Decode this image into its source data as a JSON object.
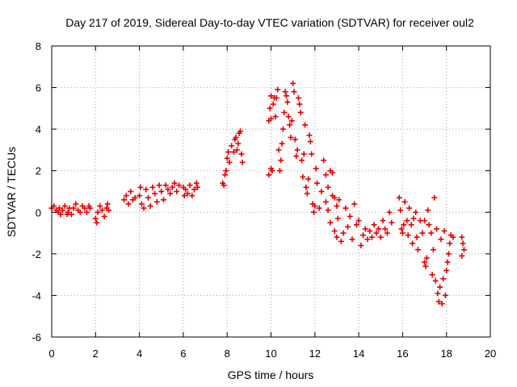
{
  "chart_data": {
    "type": "scatter",
    "title": "Day 217 of 2019, Sidereal Day-to-day VTEC variation (SDTVAR) for receiver oul2",
    "xlabel": "GPS time / hours",
    "ylabel": "SDTVAR / TECUs",
    "xlim": [
      0,
      20
    ],
    "ylim": [
      -6,
      8
    ],
    "xticks": [
      0,
      2,
      4,
      6,
      8,
      10,
      12,
      14,
      16,
      18,
      20
    ],
    "yticks": [
      -6,
      -4,
      -2,
      0,
      2,
      4,
      6,
      8
    ],
    "grid": true,
    "marker": "+",
    "colors": {
      "series": "#e60000",
      "grid": "#a0a0a0",
      "axis": "#000000"
    },
    "series": [
      {
        "name": "SDTVAR",
        "points": [
          [
            0.0,
            0.2
          ],
          [
            0.1,
            0.3
          ],
          [
            0.2,
            0.1
          ],
          [
            0.3,
            0.0
          ],
          [
            0.35,
            0.2
          ],
          [
            0.4,
            -0.1
          ],
          [
            0.5,
            0.1
          ],
          [
            0.6,
            0.3
          ],
          [
            0.7,
            -0.1
          ],
          [
            0.75,
            0.0
          ],
          [
            0.8,
            0.2
          ],
          [
            0.9,
            -0.1
          ],
          [
            1.0,
            0.2
          ],
          [
            1.1,
            0.4
          ],
          [
            1.2,
            0.1
          ],
          [
            1.3,
            0.0
          ],
          [
            1.4,
            0.3
          ],
          [
            1.5,
            0.2
          ],
          [
            1.6,
            0.0
          ],
          [
            1.7,
            0.3
          ],
          [
            1.75,
            0.2
          ],
          [
            2.0,
            -0.3
          ],
          [
            2.05,
            -0.5
          ],
          [
            2.1,
            0.0
          ],
          [
            2.2,
            0.3
          ],
          [
            2.3,
            0.1
          ],
          [
            2.4,
            -0.2
          ],
          [
            2.5,
            0.2
          ],
          [
            2.55,
            0.4
          ],
          [
            2.6,
            0.1
          ],
          [
            3.3,
            0.6
          ],
          [
            3.4,
            0.8
          ],
          [
            3.5,
            0.4
          ],
          [
            3.6,
            1.0
          ],
          [
            3.7,
            0.6
          ],
          [
            3.8,
            0.7
          ],
          [
            4.0,
            0.8
          ],
          [
            4.05,
            1.2
          ],
          [
            4.1,
            0.4
          ],
          [
            4.2,
            0.2
          ],
          [
            4.3,
            1.1
          ],
          [
            4.4,
            0.7
          ],
          [
            4.5,
            0.3
          ],
          [
            4.6,
            1.2
          ],
          [
            4.7,
            0.9
          ],
          [
            4.8,
            0.5
          ],
          [
            4.9,
            1.3
          ],
          [
            5.0,
            1.0
          ],
          [
            5.1,
            0.6
          ],
          [
            5.2,
            1.3
          ],
          [
            5.3,
            1.1
          ],
          [
            5.4,
            0.9
          ],
          [
            5.5,
            1.2
          ],
          [
            5.6,
            1.4
          ],
          [
            5.7,
            1.0
          ],
          [
            5.8,
            1.3
          ],
          [
            6.0,
            1.2
          ],
          [
            6.05,
            0.8
          ],
          [
            6.1,
            1.1
          ],
          [
            6.2,
            0.9
          ],
          [
            6.3,
            1.3
          ],
          [
            6.4,
            0.8
          ],
          [
            6.5,
            1.1
          ],
          [
            6.6,
            1.4
          ],
          [
            6.65,
            1.2
          ],
          [
            7.8,
            1.4
          ],
          [
            7.85,
            1.3
          ],
          [
            7.9,
            1.8
          ],
          [
            7.95,
            2.0
          ],
          [
            8.0,
            2.6
          ],
          [
            8.05,
            2.9
          ],
          [
            8.1,
            2.4
          ],
          [
            8.2,
            3.2
          ],
          [
            8.3,
            2.9
          ],
          [
            8.35,
            3.5
          ],
          [
            8.4,
            3.6
          ],
          [
            8.45,
            3.0
          ],
          [
            8.5,
            3.3
          ],
          [
            8.55,
            3.8
          ],
          [
            8.6,
            3.9
          ],
          [
            8.65,
            2.8
          ],
          [
            8.7,
            2.4
          ],
          [
            9.9,
            1.8
          ],
          [
            10.0,
            2.1
          ],
          [
            10.05,
            2.0
          ],
          [
            9.9,
            4.4
          ],
          [
            10.0,
            4.5
          ],
          [
            9.95,
            5.0
          ],
          [
            10.0,
            5.6
          ],
          [
            10.1,
            5.2
          ],
          [
            10.15,
            5.5
          ],
          [
            10.2,
            4.6
          ],
          [
            10.25,
            5.5
          ],
          [
            10.3,
            5.9
          ],
          [
            10.35,
            3.0
          ],
          [
            10.4,
            2.0
          ],
          [
            10.45,
            2.5
          ],
          [
            10.5,
            3.3
          ],
          [
            10.55,
            4.0
          ],
          [
            10.6,
            4.8
          ],
          [
            10.65,
            5.8
          ],
          [
            10.7,
            5.6
          ],
          [
            10.75,
            5.3
          ],
          [
            10.8,
            4.6
          ],
          [
            10.85,
            4.2
          ],
          [
            10.9,
            3.6
          ],
          [
            10.95,
            4.4
          ],
          [
            11.0,
            6.2
          ],
          [
            11.05,
            5.8
          ],
          [
            11.1,
            3.5
          ],
          [
            11.15,
            2.7
          ],
          [
            11.2,
            3.0
          ],
          [
            11.25,
            5.5
          ],
          [
            11.3,
            5.2
          ],
          [
            11.35,
            4.8
          ],
          [
            11.4,
            2.5
          ],
          [
            11.45,
            1.7
          ],
          [
            11.5,
            2.8
          ],
          [
            11.55,
            4.2
          ],
          [
            11.6,
            1.2
          ],
          [
            11.65,
            0.9
          ],
          [
            11.7,
            1.6
          ],
          [
            11.75,
            3.7
          ],
          [
            11.8,
            3.4
          ],
          [
            11.85,
            2.8
          ],
          [
            11.9,
            0.4
          ],
          [
            11.95,
            0.0
          ],
          [
            12.0,
            0.3
          ],
          [
            12.05,
            2.1
          ],
          [
            12.1,
            1.4
          ],
          [
            12.2,
            0.2
          ],
          [
            12.3,
            1.0
          ],
          [
            12.4,
            2.5
          ],
          [
            12.5,
            1.8
          ],
          [
            12.6,
            1.2
          ],
          [
            12.7,
            2.0
          ],
          [
            12.8,
            1.9
          ],
          [
            12.9,
            0.7
          ],
          [
            13.0,
            0.3
          ],
          [
            12.5,
            0.5
          ],
          [
            12.6,
            0.1
          ],
          [
            12.7,
            -0.5
          ],
          [
            12.8,
            0.8
          ],
          [
            12.9,
            -0.9
          ],
          [
            13.0,
            -1.2
          ],
          [
            13.05,
            -0.3
          ],
          [
            13.1,
            0.6
          ],
          [
            13.2,
            -1.4
          ],
          [
            13.3,
            -1.0
          ],
          [
            13.4,
            0.2
          ],
          [
            13.5,
            -0.7
          ],
          [
            13.6,
            -0.2
          ],
          [
            13.7,
            -1.3
          ],
          [
            13.8,
            0.4
          ],
          [
            13.9,
            -0.6
          ],
          [
            14.0,
            -0.4
          ],
          [
            14.1,
            -1.6
          ],
          [
            14.2,
            -1.1
          ],
          [
            14.3,
            -0.8
          ],
          [
            14.4,
            -1.3
          ],
          [
            14.5,
            -0.9
          ],
          [
            14.6,
            -1.2
          ],
          [
            14.7,
            -0.6
          ],
          [
            14.8,
            -1.0
          ],
          [
            14.9,
            -0.8
          ],
          [
            15.0,
            -1.2
          ],
          [
            15.1,
            -0.4
          ],
          [
            15.2,
            -0.8
          ],
          [
            15.3,
            -1.0
          ],
          [
            15.4,
            0.0
          ],
          [
            15.5,
            -0.5
          ],
          [
            15.85,
            0.7
          ],
          [
            15.9,
            0.1
          ],
          [
            15.95,
            -0.8
          ],
          [
            16.0,
            -1.0
          ],
          [
            16.05,
            -0.6
          ],
          [
            16.1,
            0.5
          ],
          [
            16.2,
            -0.4
          ],
          [
            16.25,
            -1.1
          ],
          [
            16.3,
            0.2
          ],
          [
            16.4,
            -0.6
          ],
          [
            16.45,
            -1.5
          ],
          [
            16.5,
            -0.3
          ],
          [
            16.6,
            0.0
          ],
          [
            16.65,
            -1.2
          ],
          [
            16.7,
            -1.8
          ],
          [
            16.8,
            -0.4
          ],
          [
            16.9,
            -1.0
          ],
          [
            17.0,
            -0.4
          ],
          [
            17.0,
            -2.4
          ],
          [
            17.05,
            -2.6
          ],
          [
            17.1,
            -2.2
          ],
          [
            17.15,
            0.1
          ],
          [
            17.2,
            -0.6
          ],
          [
            17.3,
            -1.0
          ],
          [
            17.35,
            -3.0
          ],
          [
            17.4,
            -1.8
          ],
          [
            17.45,
            0.7
          ],
          [
            17.5,
            -3.3
          ],
          [
            17.55,
            -0.8
          ],
          [
            17.6,
            -3.9
          ],
          [
            17.65,
            -4.3
          ],
          [
            17.7,
            -3.6
          ],
          [
            17.75,
            -1.3
          ],
          [
            17.8,
            -4.4
          ],
          [
            17.85,
            -3.2
          ],
          [
            17.9,
            -0.9
          ],
          [
            17.95,
            -4.0
          ],
          [
            18.0,
            -2.8
          ],
          [
            18.05,
            -2.4
          ],
          [
            18.1,
            -2.0
          ],
          [
            18.15,
            -1.5
          ],
          [
            18.2,
            -1.1
          ],
          [
            18.3,
            -1.2
          ],
          [
            18.7,
            -1.2
          ],
          [
            18.75,
            -1.5
          ],
          [
            18.8,
            -1.8
          ],
          [
            18.7,
            -2.1
          ]
        ]
      }
    ]
  }
}
